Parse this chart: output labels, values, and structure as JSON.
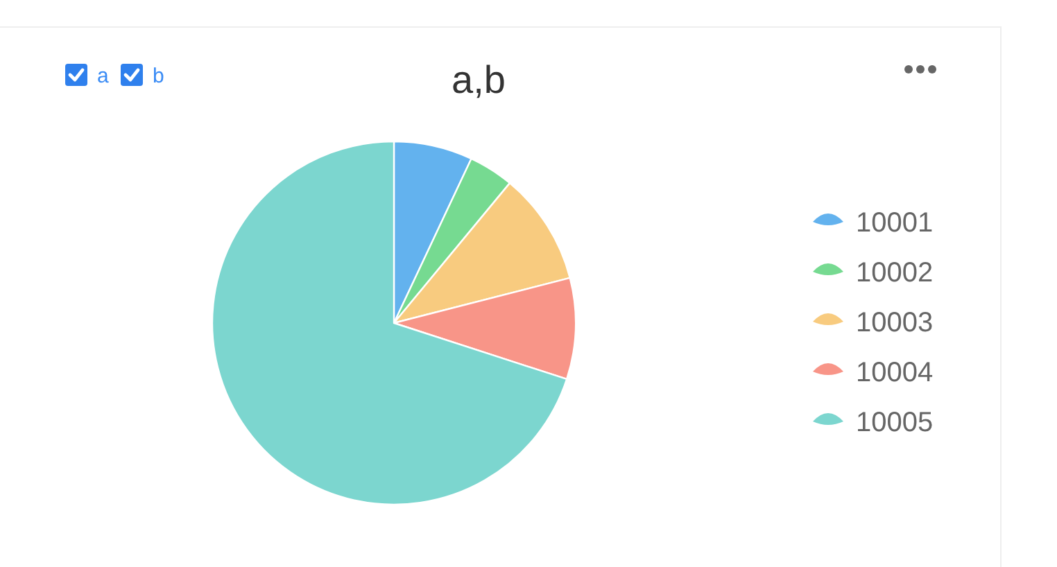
{
  "chart_data": {
    "type": "pie",
    "title": "a,b",
    "categories": [
      "10001",
      "10002",
      "10003",
      "10004",
      "10005"
    ],
    "values": [
      7,
      4,
      10,
      9,
      70
    ],
    "colors": [
      "#63b2ee",
      "#76da91",
      "#f8cb7f",
      "#f89588",
      "#7cd6cf"
    ],
    "legend": "right",
    "annotations": [
      "a",
      "b"
    ]
  }
}
